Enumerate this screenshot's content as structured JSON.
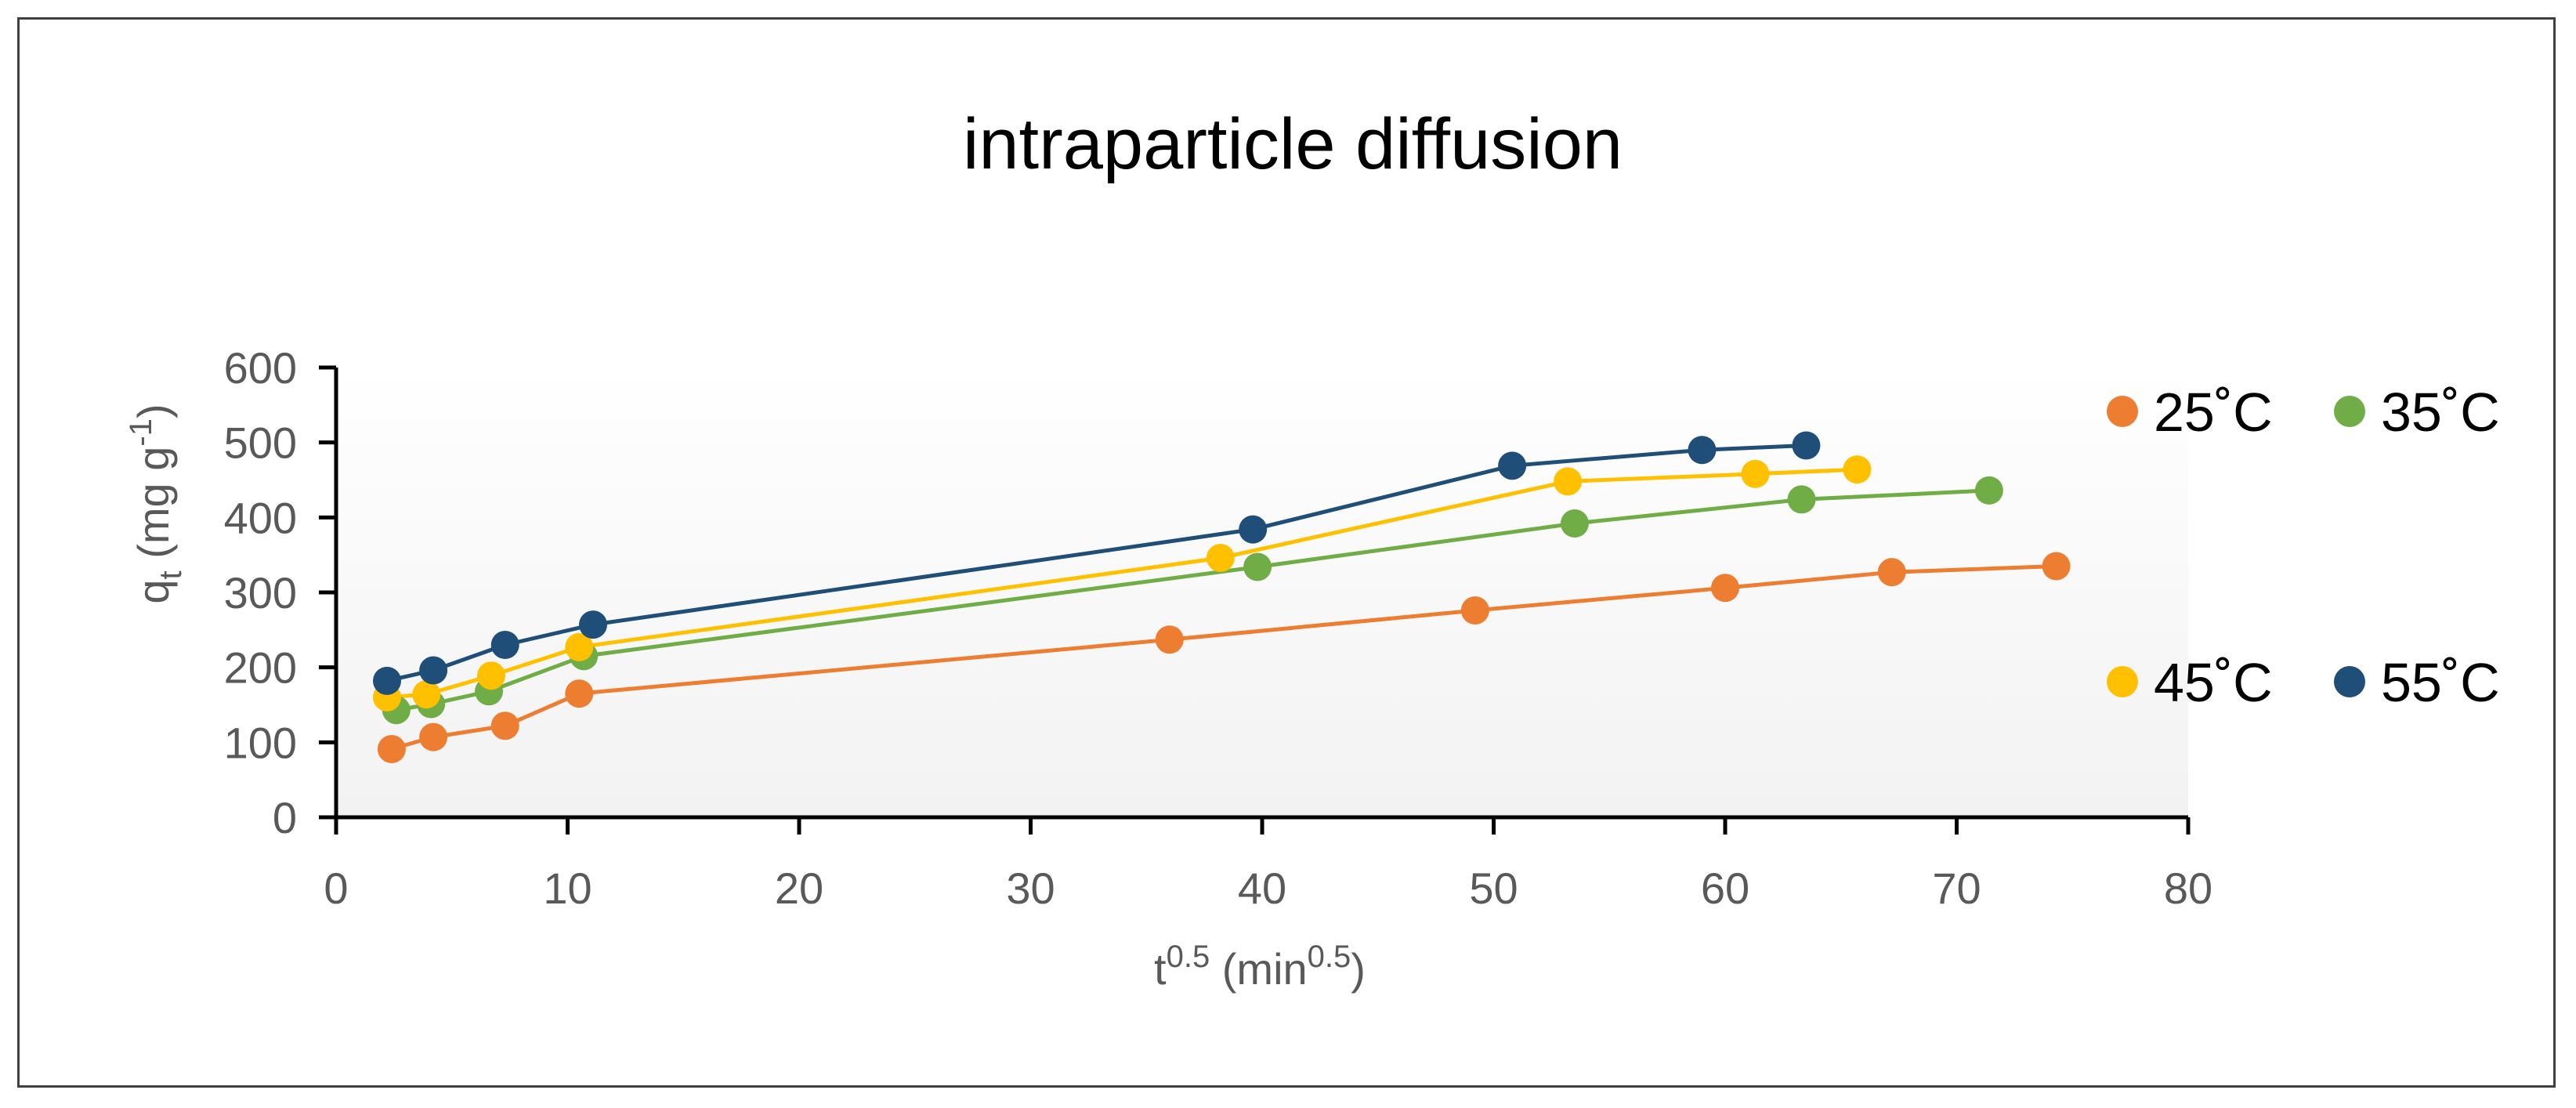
{
  "chart_data": {
    "type": "line",
    "title": "intraparticle diffusion",
    "xlabel": {
      "base": "t",
      "base_sup": "0.5",
      "unit_open": " (min",
      "unit_sup": "0.5",
      "unit_close": ")"
    },
    "ylabel": {
      "base": "q",
      "base_sub": "t",
      "unit_open": " (mg g",
      "unit_sup": "-1",
      "unit_close": ")"
    },
    "xlim": [
      0,
      80
    ],
    "ylim": [
      0,
      600
    ],
    "xticks": [
      "0",
      "10",
      "20",
      "30",
      "40",
      "50",
      "60",
      "70",
      "80"
    ],
    "yticks": [
      "0",
      "100",
      "200",
      "300",
      "400",
      "500",
      "600"
    ],
    "grid": false,
    "legend_position": "right",
    "series": [
      {
        "name": "25˚C",
        "color": "#ED7D31",
        "x": [
          2.4,
          4.2,
          7.3,
          10.5,
          36.0,
          49.2,
          60.0,
          67.2,
          74.3
        ],
        "y": [
          91,
          107,
          122,
          165,
          237,
          276,
          306,
          327,
          335
        ]
      },
      {
        "name": "35˚C",
        "color": "#70AD47",
        "x": [
          2.6,
          4.1,
          6.6,
          10.7,
          39.8,
          53.5,
          63.3,
          71.4
        ],
        "y": [
          143,
          151,
          168,
          215,
          334,
          392,
          424,
          436
        ]
      },
      {
        "name": "45˚C",
        "color": "#FFC000",
        "x": [
          2.2,
          3.9,
          6.7,
          10.5,
          38.2,
          53.2,
          61.3,
          65.7
        ],
        "y": [
          160,
          164,
          189,
          227,
          346,
          448,
          458,
          464
        ]
      },
      {
        "name": "55˚C",
        "color": "#1F4E79",
        "x": [
          2.2,
          4.2,
          7.3,
          11.1,
          39.6,
          50.8,
          59.0,
          63.5
        ],
        "y": [
          182,
          196,
          230,
          257,
          384,
          469,
          490,
          496
        ]
      }
    ]
  }
}
